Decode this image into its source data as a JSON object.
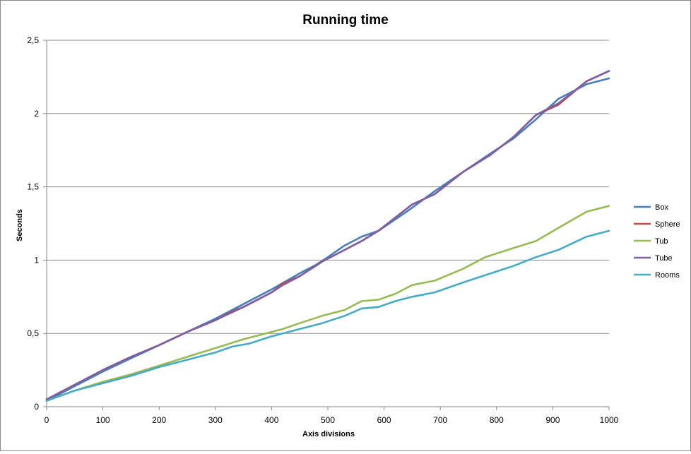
{
  "chart_data": {
    "type": "line",
    "title": "Running time",
    "xlabel": "Axis divisions",
    "ylabel": "Seconds",
    "xlim": [
      0,
      1000
    ],
    "ylim": [
      0,
      2.5
    ],
    "x_ticks": [
      "0",
      "100",
      "200",
      "300",
      "400",
      "500",
      "600",
      "700",
      "800",
      "900",
      "1000"
    ],
    "y_ticks": [
      "0",
      "0,5",
      "1",
      "1,5",
      "2",
      "2,5"
    ],
    "grid": "horizontal",
    "legend": "right",
    "series": [
      {
        "name": "Box",
        "color": "#4a7ebb",
        "x": [
          0,
          50,
          100,
          150,
          200,
          250,
          300,
          350,
          400,
          450,
          480,
          500,
          530,
          560,
          590,
          640,
          690,
          740,
          790,
          830,
          870,
          910,
          960,
          1000
        ],
        "y": [
          0.04,
          0.14,
          0.24,
          0.33,
          0.42,
          0.51,
          0.6,
          0.7,
          0.8,
          0.91,
          0.97,
          1.02,
          1.1,
          1.16,
          1.2,
          1.33,
          1.47,
          1.6,
          1.73,
          1.83,
          1.96,
          2.1,
          2.2,
          2.24
        ]
      },
      {
        "name": "Sphere",
        "color": "#be4b48",
        "x": [
          0,
          50,
          100,
          150,
          200,
          250,
          300,
          330,
          350,
          400,
          420,
          450,
          490,
          530,
          560,
          590,
          650,
          690,
          740,
          790,
          830,
          870,
          910,
          960,
          1000
        ],
        "y": [
          0.05,
          0.15,
          0.25,
          0.34,
          0.42,
          0.51,
          0.59,
          0.65,
          0.68,
          0.78,
          0.84,
          0.89,
          0.99,
          1.07,
          1.13,
          1.2,
          1.38,
          1.45,
          1.6,
          1.72,
          1.84,
          1.99,
          2.06,
          2.22,
          2.29
        ]
      },
      {
        "name": "Tub",
        "color": "#98b954",
        "x": [
          0,
          50,
          100,
          150,
          200,
          250,
          300,
          350,
          400,
          420,
          450,
          490,
          530,
          560,
          590,
          620,
          650,
          690,
          740,
          780,
          820,
          870,
          910,
          960,
          1000
        ],
        "y": [
          0.04,
          0.11,
          0.17,
          0.22,
          0.28,
          0.34,
          0.4,
          0.46,
          0.51,
          0.53,
          0.57,
          0.62,
          0.66,
          0.72,
          0.73,
          0.77,
          0.83,
          0.86,
          0.94,
          1.02,
          1.07,
          1.13,
          1.22,
          1.33,
          1.37
        ]
      },
      {
        "name": "Tube",
        "color": "#7d60a0",
        "x": [
          0,
          50,
          100,
          150,
          200,
          250,
          300,
          350,
          400,
          420,
          450,
          490,
          530,
          560,
          590,
          650,
          690,
          740,
          790,
          830,
          870,
          910,
          960,
          1000
        ],
        "y": [
          0.05,
          0.15,
          0.25,
          0.34,
          0.42,
          0.51,
          0.59,
          0.68,
          0.78,
          0.83,
          0.89,
          0.99,
          1.07,
          1.13,
          1.2,
          1.38,
          1.45,
          1.6,
          1.72,
          1.84,
          1.99,
          2.07,
          2.22,
          2.29
        ]
      },
      {
        "name": "Rooms",
        "color": "#46aac5",
        "x": [
          0,
          50,
          100,
          150,
          200,
          250,
          270,
          300,
          330,
          360,
          400,
          420,
          450,
          490,
          530,
          560,
          590,
          620,
          650,
          690,
          750,
          790,
          830,
          870,
          910,
          960,
          1000
        ],
        "y": [
          0.04,
          0.11,
          0.16,
          0.21,
          0.27,
          0.32,
          0.34,
          0.37,
          0.41,
          0.43,
          0.48,
          0.5,
          0.53,
          0.57,
          0.62,
          0.67,
          0.68,
          0.72,
          0.75,
          0.78,
          0.86,
          0.91,
          0.96,
          1.02,
          1.07,
          1.16,
          1.2
        ]
      }
    ]
  }
}
